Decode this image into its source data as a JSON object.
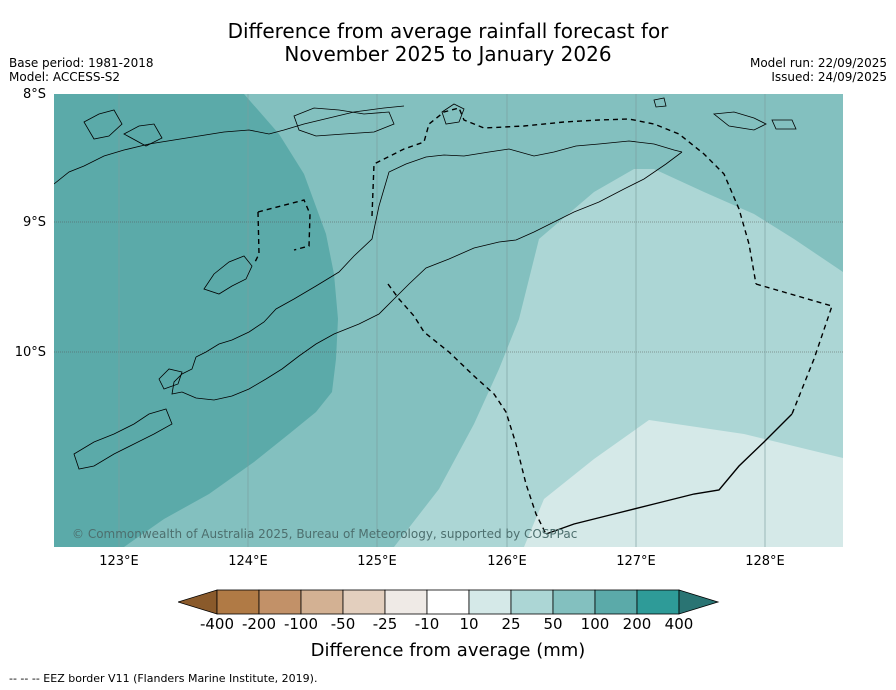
{
  "title": {
    "line1": "Difference from average rainfall forecast for",
    "line2": "November 2025 to January 2026"
  },
  "meta_left": {
    "base_period": "Base period: 1981-2018",
    "model": "Model: ACCESS-S2"
  },
  "meta_right": {
    "model_run": "Model run: 22/09/2025",
    "issued": "Issued: 24/09/2025"
  },
  "map": {
    "lat_labels": [
      "8°S",
      "9°S",
      "10°S"
    ],
    "lon_labels": [
      "123°E",
      "124°E",
      "125°E",
      "126°E",
      "127°E",
      "128°E"
    ],
    "copyright": "© Commonwealth of Australia 2025, Bureau of Meteorology, supported by COSPPac",
    "regions": [
      {
        "category": "100 to 200",
        "color": "#5baaa9"
      },
      {
        "category": "50 to 100",
        "color": "#83c0bf"
      },
      {
        "category": "25 to 50",
        "color": "#acd6d5"
      },
      {
        "category": "10 to 25",
        "color": "#d5e9e8"
      }
    ],
    "lines": {
      "coastline": "#000000",
      "eez_border": "#000000",
      "grid": "#555555"
    }
  },
  "colorbar": {
    "labels": [
      "-400",
      "-200",
      "-100",
      "-50",
      "-25",
      "-10",
      "10",
      "25",
      "50",
      "100",
      "200",
      "400"
    ],
    "colors": [
      "#8a5a2b",
      "#b07a45",
      "#c29168",
      "#d3b193",
      "#e3cfbe",
      "#efeae6",
      "#ffffff",
      "#d5e9e8",
      "#acd6d5",
      "#83c0bf",
      "#5baaa9",
      "#2e9b98",
      "#2a7473"
    ],
    "title": "Difference from average (mm)"
  },
  "footnote": "--  --  -- EEZ border V11 (Flanders Marine Institute, 2019)."
}
